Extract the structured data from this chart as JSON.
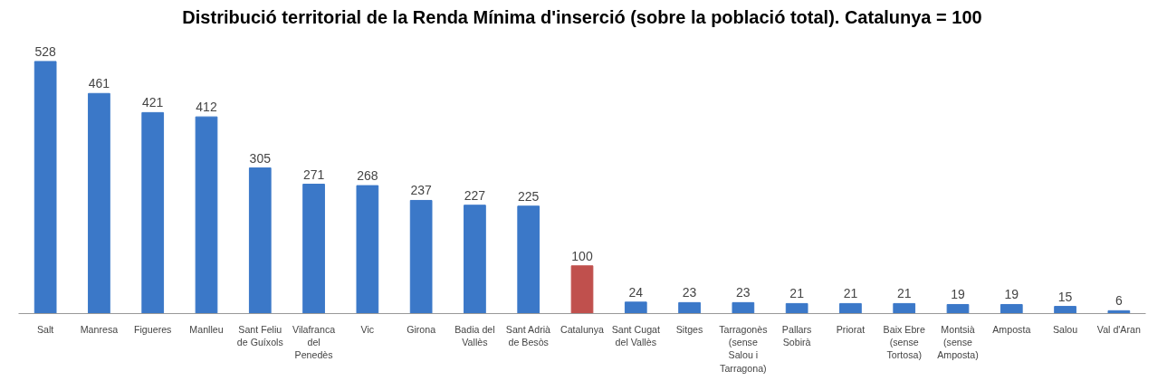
{
  "chart_data": {
    "type": "bar",
    "title": "Distribució territorial de la Renda Mínima d'inserció (sobre la població total). Catalunya = 100",
    "categories": [
      "Salt",
      "Manresa",
      "Figueres",
      "Manlleu",
      "Sant Feliu de Guíxols",
      "Vilafranca del Penedès",
      "Vic",
      "Girona",
      "Badia del Vallès",
      "Sant Adrià de Besòs",
      "Catalunya",
      "Sant Cugat del Vallès",
      "Sitges",
      "Tarragonès (sense Salou i Tarragona)",
      "Pallars Sobirà",
      "Priorat",
      "Baix Ebre (sense Tortosa)",
      "Montsià (sense Amposta)",
      "Amposta",
      "Salou",
      "Val d'Aran"
    ],
    "values": [
      528,
      461,
      421,
      412,
      305,
      271,
      268,
      237,
      227,
      225,
      100,
      24,
      23,
      23,
      21,
      21,
      21,
      19,
      19,
      15,
      6
    ],
    "colors": [
      "#3b78c8",
      "#3b78c8",
      "#3b78c8",
      "#3b78c8",
      "#3b78c8",
      "#3b78c8",
      "#3b78c8",
      "#3b78c8",
      "#3b78c8",
      "#3b78c8",
      "#c0504d",
      "#3b78c8",
      "#3b78c8",
      "#3b78c8",
      "#3b78c8",
      "#3b78c8",
      "#3b78c8",
      "#3b78c8",
      "#3b78c8",
      "#3b78c8",
      "#3b78c8"
    ],
    "data_labels": true
  }
}
